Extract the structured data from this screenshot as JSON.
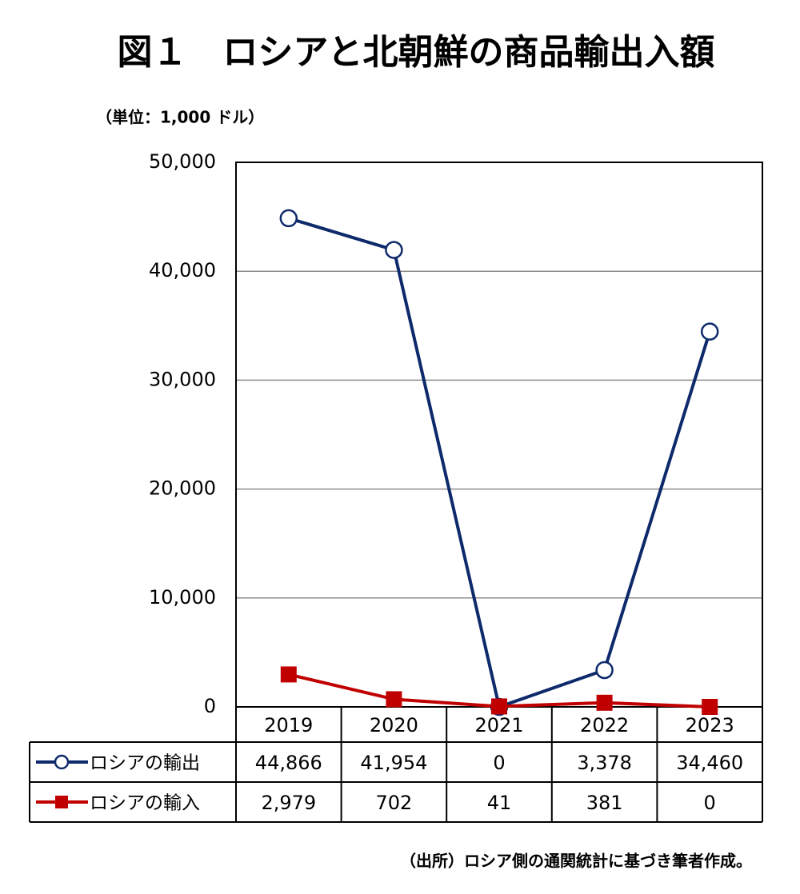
{
  "chart_data": {
    "type": "line",
    "title": "図１　ロシアと北朝鮮の商品輸出入額",
    "unit_label": "（単位：1,000 ドル）",
    "source": "（出所）ロシア側の通関統計に基づき筆者作成。",
    "categories": [
      "2019",
      "2020",
      "2021",
      "2022",
      "2023"
    ],
    "ylim": [
      0,
      50000
    ],
    "yticks": [
      0,
      {
        "value": 10000,
        "label": "10,000"
      },
      {
        "value": 20000,
        "label": "20,000"
      },
      {
        "value": 30000,
        "label": "30,000"
      },
      {
        "value": 40000,
        "label": "40,000"
      },
      {
        "value": 50000,
        "label": "50,000"
      }
    ],
    "grid": true,
    "series": [
      {
        "name": "ロシアの輸出",
        "color": "#0e2a6b",
        "marker": "circle",
        "values": [
          44866,
          41954,
          0,
          3378,
          34460
        ],
        "value_labels": [
          "44,866",
          "41,954",
          "0",
          "3,378",
          "34,460"
        ]
      },
      {
        "name": "ロシアの輸入",
        "color": "#c00000",
        "marker": "square",
        "values": [
          2979,
          702,
          41,
          381,
          0
        ],
        "value_labels": [
          "2,979",
          "702",
          "41",
          "381",
          "0"
        ]
      }
    ]
  }
}
